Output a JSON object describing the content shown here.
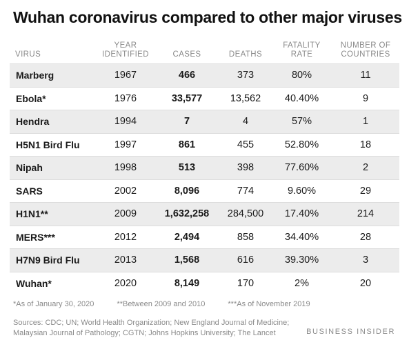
{
  "title": "Wuhan coronavirus compared to other major viruses",
  "table": {
    "headers": {
      "virus": "VIRUS",
      "year": "YEAR IDENTIFIED",
      "cases": "CASES",
      "deaths": "DEATHS",
      "fatality": "FATALITY RATE",
      "countries": "NUMBER OF COUNTRIES"
    },
    "rows": [
      {
        "virus": "Marberg",
        "year": "1967",
        "cases": "466",
        "deaths": "373",
        "fatality": "80%",
        "countries": "11"
      },
      {
        "virus": "Ebola*",
        "year": "1976",
        "cases": "33,577",
        "deaths": "13,562",
        "fatality": "40.40%",
        "countries": "9"
      },
      {
        "virus": "Hendra",
        "year": "1994",
        "cases": "7",
        "deaths": "4",
        "fatality": "57%",
        "countries": "1"
      },
      {
        "virus": "H5N1 Bird Flu",
        "year": "1997",
        "cases": "861",
        "deaths": "455",
        "fatality": "52.80%",
        "countries": "18"
      },
      {
        "virus": "Nipah",
        "year": "1998",
        "cases": "513",
        "deaths": "398",
        "fatality": "77.60%",
        "countries": "2"
      },
      {
        "virus": "SARS",
        "year": "2002",
        "cases": "8,096",
        "deaths": "774",
        "fatality": "9.60%",
        "countries": "29"
      },
      {
        "virus": "H1N1**",
        "year": "2009",
        "cases": "1,632,258",
        "deaths": "284,500",
        "fatality": "17.40%",
        "countries": "214"
      },
      {
        "virus": "MERS***",
        "year": "2012",
        "cases": "2,494",
        "deaths": "858",
        "fatality": "34.40%",
        "countries": "28"
      },
      {
        "virus": "H7N9 Bird Flu",
        "year": "2013",
        "cases": "1,568",
        "deaths": "616",
        "fatality": "39.30%",
        "countries": "3"
      },
      {
        "virus": "Wuhan*",
        "year": "2020",
        "cases": "8,149",
        "deaths": "170",
        "fatality": "2%",
        "countries": "20"
      }
    ]
  },
  "footnotes": [
    "*As of January 30, 2020",
    "**Between 2009 and 2010",
    "***As of November 2019"
  ],
  "sources": "Sources: CDC; UN; World Health Organization; New England Journal of Medicine; Malaysian Journal of Pathology; CGTN; Johns Hopkins University; The Lancet",
  "brand": "BUSINESS INSIDER"
}
